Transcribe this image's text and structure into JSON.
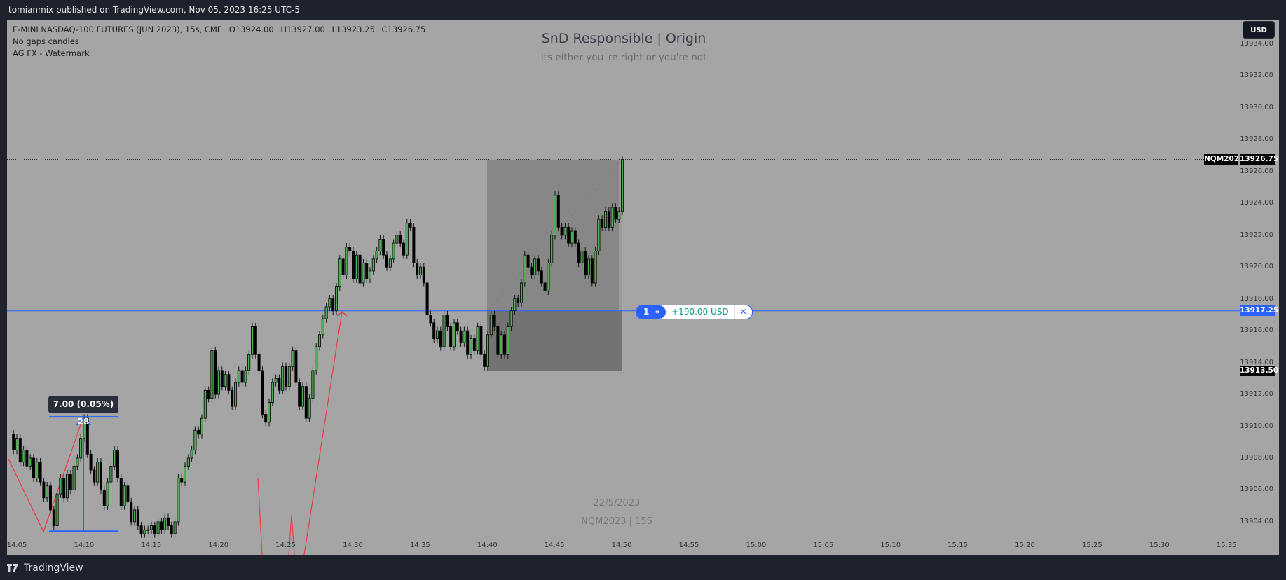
{
  "header": {
    "published": "tomianmix published on TradingView.com, Nov 05, 2023 16:25 UTC-5"
  },
  "legend": {
    "symbol": "E-MINI NASDAQ-100 FUTURES (JUN 2023), 15s, CME",
    "open": "O13924.00",
    "high": "H13927.00",
    "low": "L13923.25",
    "close": "C13926.75",
    "indicators": [
      "No gaps candles",
      "AG FX - Watermark"
    ]
  },
  "watermark": {
    "title": "SnD Responsible | Origin",
    "subtitle": "Its either you´re right or you're not",
    "date": "22/5/2023",
    "symbol": "NQM2023 | 15S"
  },
  "currency_button": "USD",
  "last_price": {
    "symbol": "NQM2023",
    "value": "13926.75"
  },
  "entry_price_label": "13917.25",
  "stop_price_label": "13913.50",
  "position": {
    "qty": "1",
    "pnl": "+190.00 USD",
    "close": "✕",
    "icon": "double-chevron-left-icon"
  },
  "measure": {
    "label": "7.00 (0.05%) 28"
  },
  "footer": {
    "brand": "TradingView"
  },
  "colors": {
    "up": "#4caf50",
    "down": "#000000",
    "entry_line": "#2962ff",
    "zigzag": "#f23645",
    "background": "#a5a5a5"
  },
  "chart_data": {
    "type": "candlestick",
    "interval": "15s",
    "first_bar_time": "14:04:45",
    "open_first": 13909.5,
    "note_open": "",
    "closes": [
      13908.5,
      13909.25,
      13907.75,
      13908.5,
      13907.5,
      13908,
      13906.75,
      13907.75,
      13906.5,
      13905.5,
      13906.25,
      13904.75,
      13903.75,
      13905.75,
      13906.75,
      13905.5,
      13907,
      13906,
      13907.5,
      13908,
      13909.25,
      13910.5,
      13908.25,
      13907.25,
      13906.5,
      13907.75,
      13906,
      13905,
      13906.5,
      13907.5,
      13908.5,
      13906.75,
      13905,
      13906.25,
      13905.25,
      13904,
      13904.75,
      13903.75,
      13903.25,
      13903.5,
      13903.5,
      13903.75,
      13903.25,
      13904,
      13903.5,
      13904.25,
      13903.75,
      13903.25,
      13904,
      13906.75,
      13906.5,
      13907.5,
      13908,
      13908.5,
      13909.75,
      13909.5,
      13910.5,
      13912.25,
      13911.75,
      13914.75,
      13912,
      13913.5,
      13912.5,
      13913.25,
      13912.25,
      13911.25,
      13912.75,
      13913.5,
      13912.75,
      13913.5,
      13914.5,
      13916.25,
      13914.5,
      13913.5,
      13910.75,
      13910.25,
      13911.5,
      13912.75,
      13913,
      13912.25,
      13913.75,
      13912.5,
      13913.75,
      13914.75,
      13912.75,
      13911.25,
      13912.5,
      13910.5,
      13911.75,
      13913.5,
      13915,
      13915.75,
      13916.75,
      13917.5,
      13918,
      13917.25,
      13918.75,
      13920.5,
      13919.5,
      13921.25,
      13921,
      13919.25,
      13920.75,
      13919,
      13920.25,
      13919.25,
      13919.75,
      13920.5,
      13921,
      13921.75,
      13920.75,
      13920,
      13920.5,
      13921.5,
      13922,
      13921.5,
      13920.75,
      13922.75,
      13922.5,
      13920.25,
      13919.5,
      13920,
      13919,
      13917,
      13916.5,
      13915.5,
      13916,
      13915,
      13917,
      13916.25,
      13915,
      13916.5,
      13916,
      13915.25,
      13916,
      13914.5,
      13915.5,
      13914.75,
      13916.25,
      13914.5,
      13913.75,
      13915.75,
      13917,
      13916.25,
      13914.5,
      13915.75,
      13914.5,
      13916.25,
      13917.25,
      13918,
      13917.75,
      13919,
      13920.75,
      13920,
      13919.5,
      13920.5,
      13919.75,
      13919,
      13918.5,
      13920.25,
      13922,
      13924.5,
      13922.5,
      13922,
      13922.5,
      13921.5,
      13922.25,
      13921.5,
      13920.25,
      13921,
      13919.5,
      13920.5,
      13919,
      13921,
      13923,
      13922.5,
      13923.5,
      13922.5,
      13923.75,
      13923,
      13923.5,
      13926.75
    ],
    "y_ticks": [
      "13934.00",
      "13932.00",
      "13930.00",
      "13928.00",
      "13926.00",
      "13924.00",
      "13922.00",
      "13920.00",
      "13918.00",
      "13916.00",
      "13914.00",
      "13912.00",
      "13910.00",
      "13908.00",
      "13906.00",
      "13904.00"
    ],
    "x_ticks": [
      "14:05",
      "14:10",
      "14:15",
      "14:20",
      "14:25",
      "14:30",
      "14:35",
      "14:40",
      "14:45",
      "14:50",
      "14:55",
      "15:00",
      "15:05",
      "15:10",
      "15:15",
      "15:20",
      "15:25",
      "15:30",
      "15:35"
    ],
    "ylim": [
      13902.75,
      13935
    ],
    "long_position": {
      "entry": 13917.25,
      "target": 13926.75,
      "stop": 13913.5,
      "start": "14:40",
      "end": "14:50"
    },
    "measurement": {
      "from": 13903.5,
      "to": 13910.5,
      "change": 7.0,
      "bars": 28
    }
  }
}
